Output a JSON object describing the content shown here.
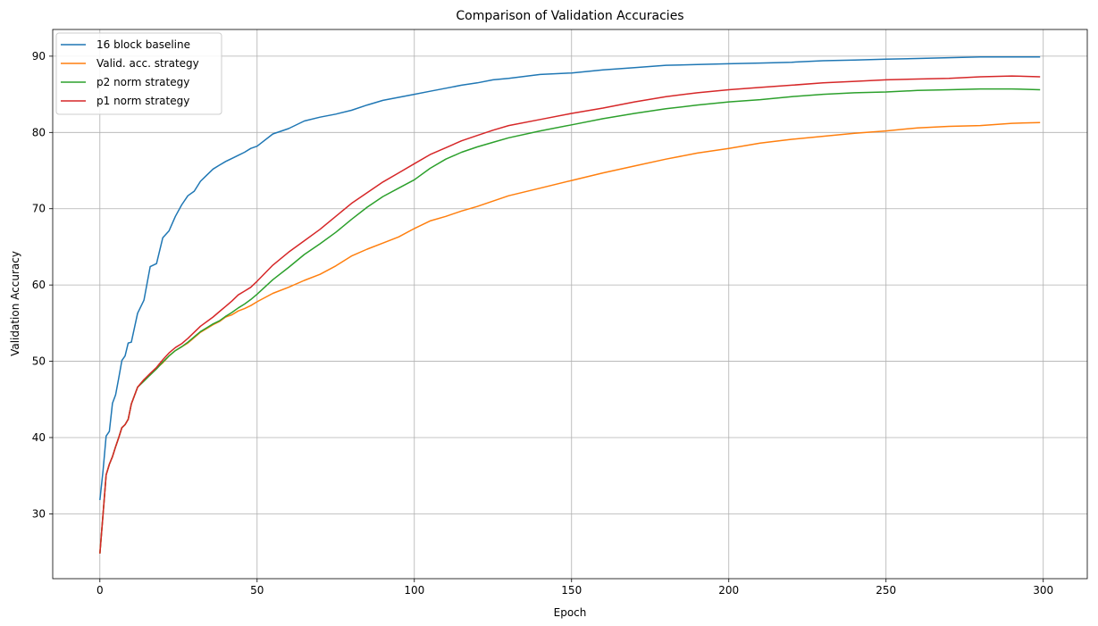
{
  "chart_data": {
    "type": "line",
    "title": "Comparison of Validation Accuracies",
    "xlabel": "Epoch",
    "ylabel": "Validation Accuracy",
    "xlim": [
      -15,
      314
    ],
    "ylim": [
      21.5,
      93.5
    ],
    "xticks": [
      0,
      50,
      100,
      150,
      200,
      250,
      300
    ],
    "yticks": [
      30,
      40,
      50,
      60,
      70,
      80,
      90
    ],
    "grid": true,
    "legend_position": "upper-left",
    "x": [
      0,
      1,
      2,
      3,
      4,
      5,
      6,
      7,
      8,
      9,
      10,
      12,
      14,
      16,
      18,
      20,
      22,
      24,
      26,
      28,
      30,
      32,
      34,
      36,
      38,
      40,
      42,
      44,
      46,
      48,
      50,
      55,
      60,
      65,
      70,
      75,
      80,
      85,
      90,
      95,
      100,
      105,
      110,
      115,
      120,
      125,
      130,
      140,
      150,
      160,
      170,
      180,
      190,
      200,
      210,
      220,
      230,
      240,
      250,
      260,
      270,
      280,
      290,
      299
    ],
    "series": [
      {
        "name": "16 block baseline",
        "color": "#1f77b4",
        "values": [
          31.8,
          35.6,
          40.2,
          40.8,
          44.5,
          45.6,
          47.8,
          50.1,
          50.7,
          52.4,
          52.5,
          56.3,
          58.0,
          62.4,
          62.8,
          66.2,
          67.1,
          69.0,
          70.5,
          71.7,
          72.3,
          73.6,
          74.4,
          75.2,
          75.7,
          76.2,
          76.6,
          77.0,
          77.4,
          77.9,
          78.2,
          79.8,
          80.5,
          81.5,
          82.0,
          82.4,
          82.9,
          83.6,
          84.2,
          84.6,
          85.0,
          85.4,
          85.8,
          86.2,
          86.5,
          86.9,
          87.1,
          87.6,
          87.8,
          88.2,
          88.5,
          88.8,
          88.9,
          89.0,
          89.1,
          89.2,
          89.4,
          89.5,
          89.6,
          89.7,
          89.8,
          89.9,
          89.9,
          89.9
        ]
      },
      {
        "name": "Valid. acc. strategy",
        "color": "#ff7f0e",
        "values": [
          24.8,
          29.9,
          35.1,
          36.5,
          37.5,
          38.8,
          40.0,
          41.3,
          41.7,
          42.4,
          44.4,
          46.6,
          47.6,
          48.2,
          49.1,
          49.8,
          50.7,
          51.4,
          51.9,
          52.4,
          53.1,
          53.8,
          54.3,
          54.8,
          55.2,
          55.8,
          56.1,
          56.6,
          56.9,
          57.3,
          57.8,
          58.9,
          59.7,
          60.6,
          61.4,
          62.5,
          63.8,
          64.7,
          65.5,
          66.3,
          67.4,
          68.4,
          69.0,
          69.7,
          70.3,
          71.0,
          71.7,
          72.7,
          73.7,
          74.7,
          75.6,
          76.5,
          77.3,
          77.9,
          78.6,
          79.1,
          79.5,
          79.9,
          80.2,
          80.6,
          80.8,
          80.9,
          81.2,
          81.3
        ]
      },
      {
        "name": "p2 norm strategy",
        "color": "#2ca02c",
        "values": [
          24.8,
          29.9,
          35.1,
          36.5,
          37.5,
          38.8,
          40.0,
          41.3,
          41.7,
          42.4,
          44.4,
          46.6,
          47.4,
          48.2,
          49.0,
          49.9,
          50.7,
          51.4,
          51.9,
          52.5,
          53.2,
          53.9,
          54.4,
          54.9,
          55.3,
          55.9,
          56.4,
          57.0,
          57.5,
          58.1,
          58.8,
          60.7,
          62.3,
          64.0,
          65.4,
          66.9,
          68.6,
          70.2,
          71.6,
          72.7,
          73.8,
          75.3,
          76.5,
          77.4,
          78.1,
          78.7,
          79.3,
          80.2,
          81.0,
          81.8,
          82.5,
          83.1,
          83.6,
          84.0,
          84.3,
          84.7,
          85.0,
          85.2,
          85.3,
          85.5,
          85.6,
          85.7,
          85.7,
          85.6
        ]
      },
      {
        "name": "p1 norm strategy",
        "color": "#d62728",
        "values": [
          24.8,
          29.9,
          35.1,
          36.5,
          37.5,
          38.8,
          40.0,
          41.3,
          41.7,
          42.4,
          44.4,
          46.6,
          47.6,
          48.4,
          49.2,
          50.2,
          51.1,
          51.8,
          52.3,
          53.0,
          53.8,
          54.6,
          55.2,
          55.8,
          56.5,
          57.2,
          57.9,
          58.7,
          59.2,
          59.7,
          60.5,
          62.6,
          64.3,
          65.8,
          67.3,
          69.0,
          70.7,
          72.1,
          73.5,
          74.7,
          75.9,
          77.1,
          78.0,
          78.9,
          79.6,
          80.3,
          80.9,
          81.7,
          82.5,
          83.2,
          84.0,
          84.7,
          85.2,
          85.6,
          85.9,
          86.2,
          86.5,
          86.7,
          86.9,
          87.0,
          87.1,
          87.3,
          87.4,
          87.3
        ]
      }
    ]
  }
}
